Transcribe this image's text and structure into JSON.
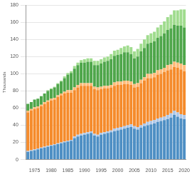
{
  "chart_data": {
    "type": "bar",
    "stacked": true,
    "grid": true,
    "y_label": "Thousands",
    "categories": [
      null,
      null,
      1975,
      null,
      null,
      null,
      null,
      1980,
      null,
      null,
      null,
      null,
      1985,
      null,
      null,
      null,
      null,
      1990,
      null,
      null,
      null,
      null,
      1995,
      null,
      null,
      null,
      null,
      2000,
      null,
      null,
      null,
      null,
      2005,
      null,
      null,
      null,
      null,
      2010,
      null,
      null,
      null,
      null,
      2015,
      null,
      null,
      null,
      null,
      2020
    ],
    "ylim": [
      0,
      180
    ],
    "yticks": [
      0,
      20,
      40,
      60,
      80,
      100,
      120,
      140,
      160,
      180
    ],
    "series": [
      {
        "color": "#4e8fc4",
        "values": [
          9,
          10,
          11,
          12,
          13,
          14,
          15,
          16,
          17,
          18,
          19,
          20,
          21,
          22,
          25,
          27,
          28,
          29,
          30,
          31,
          28,
          27,
          29,
          30,
          31,
          32,
          33,
          34,
          35,
          36,
          37,
          38,
          36,
          35,
          37,
          39,
          40,
          41,
          42,
          44,
          45,
          46,
          47,
          49,
          52,
          50,
          48,
          47
        ]
      },
      {
        "color": "#aec7e8",
        "values": [
          1,
          1,
          1,
          1,
          1,
          1,
          1,
          1,
          1,
          1,
          1,
          1,
          1,
          1,
          2,
          2,
          2,
          2,
          2,
          2,
          2,
          2,
          2,
          2,
          2,
          2,
          3,
          3,
          3,
          3,
          3,
          3,
          3,
          3,
          3,
          3,
          4,
          4,
          4,
          4,
          4,
          4,
          5,
          5,
          5,
          5,
          5,
          5
        ]
      },
      {
        "color": "#f58b2b",
        "values": [
          45,
          46,
          47,
          47,
          48,
          50,
          51,
          52,
          52,
          54,
          55,
          56,
          56,
          55,
          54,
          55,
          56,
          55,
          54,
          53,
          52,
          52,
          51,
          51,
          50,
          50,
          50,
          50,
          49,
          49,
          48,
          46,
          45,
          47,
          49,
          50,
          51,
          50,
          50,
          51,
          51,
          52,
          52,
          51,
          51,
          52,
          52,
          51
        ]
      },
      {
        "color": "#ffbb78",
        "values": [
          2,
          2,
          2,
          2,
          2,
          2,
          2,
          2,
          2,
          2,
          2,
          2,
          3,
          3,
          3,
          3,
          3,
          3,
          3,
          3,
          3,
          3,
          3,
          3,
          3,
          3,
          4,
          4,
          4,
          4,
          4,
          4,
          4,
          4,
          4,
          4,
          5,
          5,
          5,
          5,
          5,
          5,
          6,
          6,
          6,
          6,
          7,
          7
        ]
      },
      {
        "color": "#4ea64a",
        "values": [
          8,
          8,
          9,
          9,
          10,
          10,
          11,
          11,
          12,
          13,
          14,
          16,
          18,
          20,
          22,
          23,
          24,
          24,
          25,
          25,
          25,
          26,
          27,
          28,
          29,
          30,
          31,
          31,
          32,
          33,
          33,
          32,
          30,
          31,
          33,
          34,
          35,
          36,
          37,
          38,
          39,
          40,
          41,
          42,
          43,
          43,
          44,
          44
        ]
      },
      {
        "color": "#a0dc8e",
        "values": [
          0,
          0,
          0,
          0,
          0,
          0,
          1,
          1,
          1,
          1,
          1,
          2,
          2,
          2,
          3,
          3,
          3,
          4,
          4,
          4,
          5,
          5,
          5,
          5,
          5,
          6,
          6,
          6,
          7,
          7,
          8,
          8,
          8,
          9,
          9,
          10,
          10,
          11,
          11,
          12,
          13,
          14,
          15,
          16,
          17,
          18,
          19,
          21
        ]
      }
    ]
  }
}
